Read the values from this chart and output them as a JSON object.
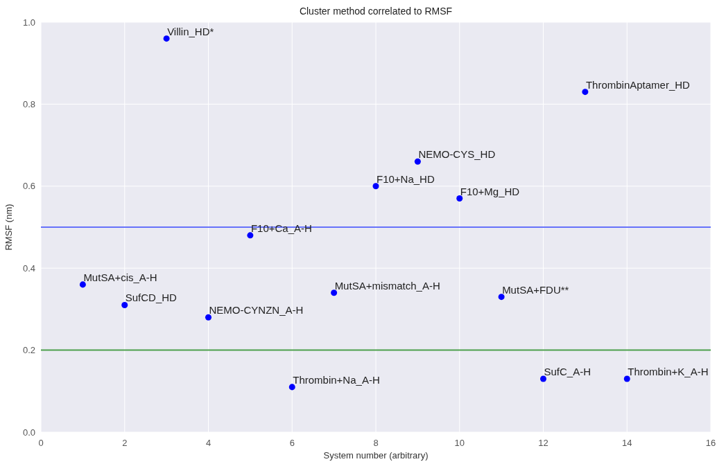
{
  "chart_data": {
    "type": "scatter",
    "title": "Cluster method correlated to RMSF",
    "xlabel": "System number (arbitrary)",
    "ylabel": "RMSF (nm)",
    "x": [
      1,
      2,
      3,
      4,
      5,
      6,
      7,
      8,
      9,
      10,
      11,
      12,
      13,
      14
    ],
    "series": [
      {
        "color": "#0000ff",
        "values": [
          0.36,
          0.31,
          0.96,
          0.28,
          0.48,
          0.11,
          0.34,
          0.6,
          0.66,
          0.57,
          0.33,
          0.13,
          0.83,
          0.13
        ]
      }
    ],
    "xlim": [
      0,
      16
    ],
    "xticks": [
      0,
      2,
      4,
      6,
      8,
      10,
      12,
      14,
      16
    ],
    "ylim": [
      0,
      1
    ],
    "yticks": [
      {
        "value": 0,
        "label": "0.0"
      },
      {
        "value": 0.2,
        "label": "0.2"
      },
      {
        "value": 0.4,
        "label": "0.4"
      },
      {
        "value": 0.6,
        "label": "0.6"
      },
      {
        "value": 0.8,
        "label": "0.8"
      },
      {
        "value": 1,
        "label": "1.0"
      }
    ],
    "grid": true,
    "marker": "circle",
    "ref_lines": [
      {
        "axis": "y",
        "value": 0.5,
        "color": "#6672fa"
      },
      {
        "axis": "y",
        "value": 0.2,
        "color": "#4c9f4c"
      }
    ],
    "annotations": [
      {
        "text": "MutSA+cis_A-H",
        "x": 1,
        "y": 0.36
      },
      {
        "text": "SufCD_HD",
        "x": 2,
        "y": 0.31
      },
      {
        "text": "Villin_HD*",
        "x": 3,
        "y": 0.96
      },
      {
        "text": "NEMO-CYNZN_A-H",
        "x": 4,
        "y": 0.28
      },
      {
        "text": "F10+Ca_A-H",
        "x": 5,
        "y": 0.48
      },
      {
        "text": "Thrombin+Na_A-H",
        "x": 6,
        "y": 0.11
      },
      {
        "text": "MutSA+mismatch_A-H",
        "x": 7,
        "y": 0.34
      },
      {
        "text": "F10+Na_HD",
        "x": 8,
        "y": 0.6
      },
      {
        "text": "NEMO-CYS_HD",
        "x": 9,
        "y": 0.66
      },
      {
        "text": "F10+Mg_HD",
        "x": 10,
        "y": 0.57
      },
      {
        "text": "MutSA+FDU**",
        "x": 11,
        "y": 0.33
      },
      {
        "text": "SufC_A-H",
        "x": 12,
        "y": 0.13
      },
      {
        "text": "ThrombinAptamer_HD",
        "x": 13,
        "y": 0.83
      },
      {
        "text": "Thrombin+K_A-H",
        "x": 14,
        "y": 0.13
      }
    ]
  }
}
